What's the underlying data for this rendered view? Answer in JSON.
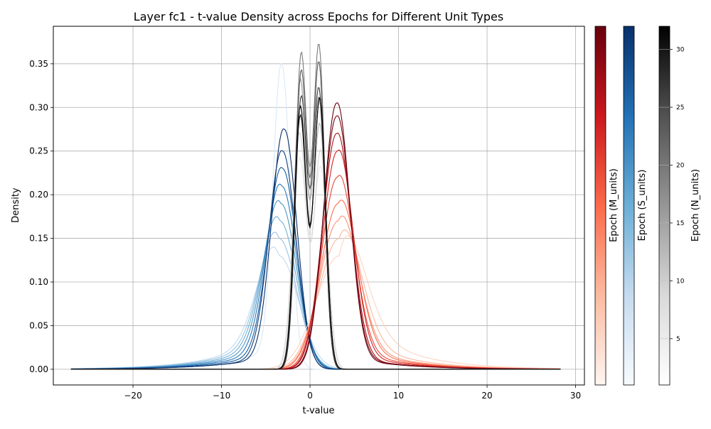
{
  "chart_data": {
    "type": "line",
    "title": "Layer fc1 - t-value Density across Epochs for Different Unit Types",
    "xlabel": "t-value",
    "ylabel": "Density",
    "xlim": [
      -29,
      31
    ],
    "ylim": [
      -0.018,
      0.393
    ],
    "grid": true,
    "x_ticks": [
      -20,
      -10,
      0,
      10,
      20,
      30
    ],
    "x_tick_labels": [
      "−20",
      "−10",
      "0",
      "10",
      "20",
      "30"
    ],
    "y_ticks": [
      0.0,
      0.05,
      0.1,
      0.15,
      0.2,
      0.25,
      0.3,
      0.35
    ],
    "y_tick_labels": [
      "0.00",
      "0.05",
      "0.10",
      "0.15",
      "0.20",
      "0.25",
      "0.30",
      "0.35"
    ],
    "x_range": [
      -27,
      28.3
    ],
    "series": [
      {
        "group": "N_units",
        "colormap": "Greys",
        "description_range": "bimodal density around ±1.2",
        "curves": [
          {
            "epoch": 2,
            "peaks": [
              [
                -1.2,
                0.24
              ],
              [
                1.2,
                0.23
              ]
            ],
            "sd": 0.8
          },
          {
            "epoch": 6,
            "peaks": [
              [
                -1.2,
                0.27
              ],
              [
                1.2,
                0.25
              ]
            ],
            "sd": 0.75
          },
          {
            "epoch": 10,
            "peaks": [
              [
                -1.1,
                0.3
              ],
              [
                1.1,
                0.28
              ]
            ],
            "sd": 0.7
          },
          {
            "epoch": 14,
            "peaks": [
              [
                -1.1,
                0.33
              ],
              [
                1.0,
                0.31
              ]
            ],
            "sd": 0.68
          },
          {
            "epoch": 18,
            "peaks": [
              [
                -1.0,
                0.36
              ],
              [
                1.0,
                0.37
              ]
            ],
            "sd": 0.66
          },
          {
            "epoch": 22,
            "peaks": [
              [
                -1.0,
                0.34
              ],
              [
                1.0,
                0.35
              ]
            ],
            "sd": 0.66
          },
          {
            "epoch": 26,
            "peaks": [
              [
                -1.0,
                0.31
              ],
              [
                1.0,
                0.32
              ]
            ],
            "sd": 0.67
          },
          {
            "epoch": 30,
            "peaks": [
              [
                -1.1,
                0.29
              ],
              [
                1.1,
                0.31
              ]
            ],
            "sd": 0.68
          },
          {
            "epoch": 32,
            "peaks": [
              [
                -1.1,
                0.3
              ],
              [
                1.1,
                0.31
              ]
            ],
            "sd": 0.68
          }
        ]
      },
      {
        "group": "S_units",
        "colormap": "Blues",
        "curves": [
          {
            "epoch": 2,
            "peaks": [
              [
                -3.2,
                0.35
              ]
            ],
            "sd": 0.95,
            "tail": 0.03
          },
          {
            "epoch": 6,
            "peaks": [
              [
                -3.5,
                0.13
              ]
            ],
            "sd": 2.2,
            "tail": 0.05
          },
          {
            "epoch": 10,
            "peaks": [
              [
                -3.5,
                0.15
              ]
            ],
            "sd": 2.0,
            "tail": 0.045
          },
          {
            "epoch": 14,
            "peaks": [
              [
                -3.4,
                0.17
              ]
            ],
            "sd": 1.9,
            "tail": 0.04
          },
          {
            "epoch": 18,
            "peaks": [
              [
                -3.3,
                0.19
              ]
            ],
            "sd": 1.8,
            "tail": 0.035
          },
          {
            "epoch": 22,
            "peaks": [
              [
                -3.2,
                0.21
              ]
            ],
            "sd": 1.7,
            "tail": 0.03
          },
          {
            "epoch": 26,
            "peaks": [
              [
                -3.1,
                0.23
              ]
            ],
            "sd": 1.6,
            "tail": 0.025
          },
          {
            "epoch": 30,
            "peaks": [
              [
                -3.1,
                0.25
              ]
            ],
            "sd": 1.5,
            "tail": 0.02
          },
          {
            "epoch": 32,
            "peaks": [
              [
                -2.9,
                0.275
              ]
            ],
            "sd": 1.4,
            "tail": 0.02
          }
        ]
      },
      {
        "group": "M_units",
        "colormap": "Reds",
        "curves": [
          {
            "epoch": 2,
            "peaks": [
              [
                3.3,
                0.13
              ]
            ],
            "sd": 2.6,
            "tail": 0.08
          },
          {
            "epoch": 6,
            "peaks": [
              [
                3.3,
                0.15
              ]
            ],
            "sd": 2.3,
            "tail": 0.05
          },
          {
            "epoch": 10,
            "peaks": [
              [
                3.2,
                0.17
              ]
            ],
            "sd": 2.1,
            "tail": 0.04
          },
          {
            "epoch": 14,
            "peaks": [
              [
                3.2,
                0.19
              ]
            ],
            "sd": 2.0,
            "tail": 0.035
          },
          {
            "epoch": 18,
            "peaks": [
              [
                3.1,
                0.22
              ]
            ],
            "sd": 1.8,
            "tail": 0.03
          },
          {
            "epoch": 22,
            "peaks": [
              [
                3.1,
                0.25
              ]
            ],
            "sd": 1.7,
            "tail": 0.025
          },
          {
            "epoch": 26,
            "peaks": [
              [
                3.0,
                0.27
              ]
            ],
            "sd": 1.6,
            "tail": 0.02
          },
          {
            "epoch": 30,
            "peaks": [
              [
                3.0,
                0.29
              ]
            ],
            "sd": 1.5,
            "tail": 0.02
          },
          {
            "epoch": 32,
            "peaks": [
              [
                3.0,
                0.305
              ]
            ],
            "sd": 1.45,
            "tail": 0.018
          }
        ]
      }
    ],
    "colorbars": [
      {
        "label": "Epoch (M_units)",
        "colormap": "Reds",
        "range": [
          1,
          32
        ],
        "ticks": []
      },
      {
        "label": "Epoch (S_units)",
        "colormap": "Blues",
        "range": [
          1,
          32
        ],
        "ticks": []
      },
      {
        "label": "Epoch (N_units)",
        "colormap": "Greys",
        "range": [
          1,
          32
        ],
        "ticks": [
          5,
          10,
          15,
          20,
          25,
          30
        ],
        "tick_labels": [
          "5",
          "10",
          "15",
          "20",
          "25",
          "30"
        ]
      }
    ],
    "colors": {
      "reds": [
        "#fff5f0",
        "#fcbba1",
        "#fb6a4a",
        "#cb181d",
        "#67000d"
      ],
      "blues": [
        "#f7fbff",
        "#c6dbef",
        "#6baed6",
        "#2171b5",
        "#08306b"
      ],
      "greys": [
        "#ffffff",
        "#d9d9d9",
        "#969696",
        "#525252",
        "#000000"
      ]
    }
  }
}
